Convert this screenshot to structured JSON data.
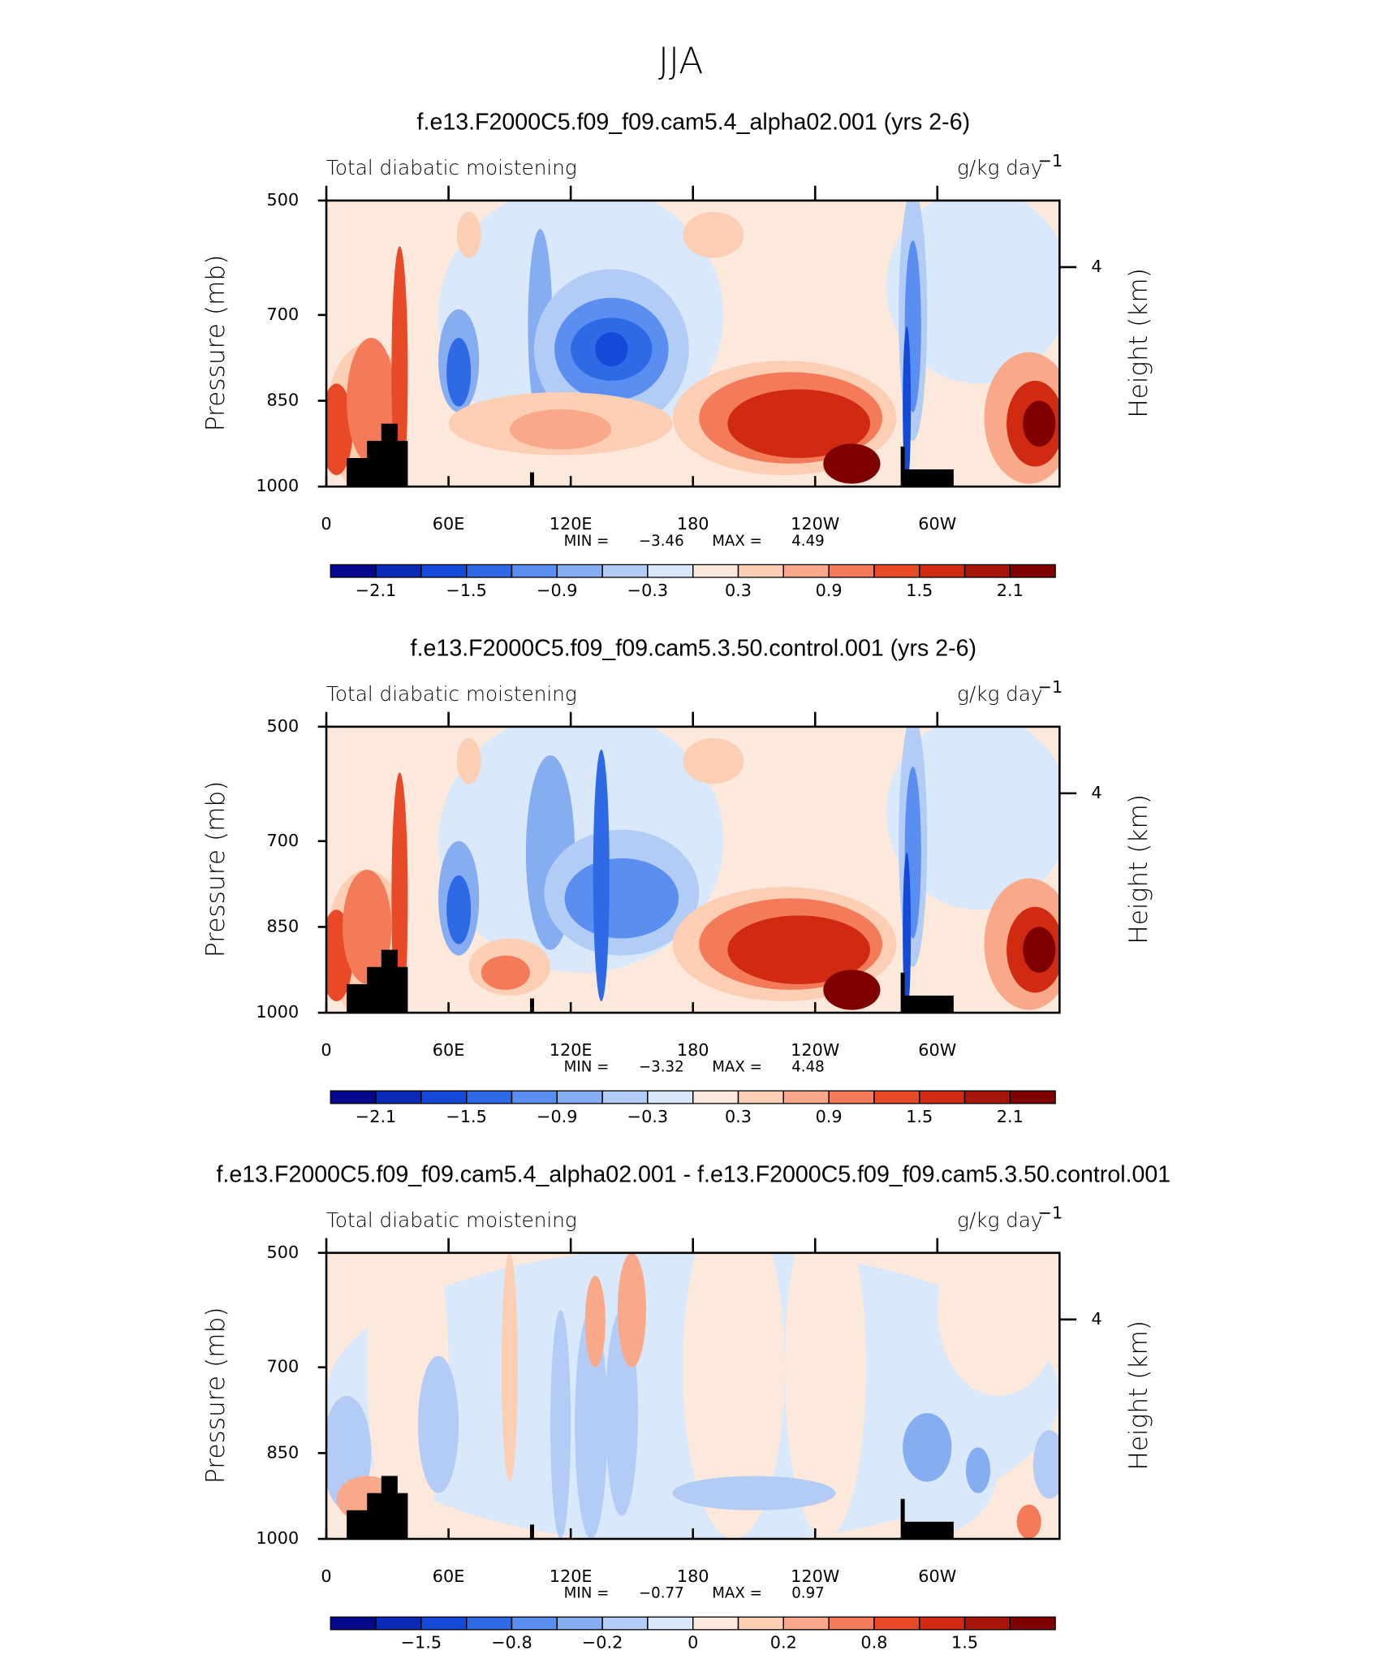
{
  "title": "JJA",
  "chart_data": [
    {
      "type": "contour",
      "title": "f.e13.F2000C5.f09_f09.cam5.4_alpha02.001 (yrs 2-6)",
      "left_label": "Total diabatic moistening",
      "units": "g/kg day",
      "units_exponent": "−1",
      "ylabel": "Pressure (mb)",
      "y2label": "Height (km)",
      "ylim": [
        500,
        1000
      ],
      "yticks": [
        500,
        700,
        850,
        1000
      ],
      "y2ticks": [
        4
      ],
      "xlim": [
        0,
        360
      ],
      "xticks": [
        0,
        {
          "value": 60,
          "label": "60E"
        },
        {
          "value": 120,
          "label": "120E"
        },
        {
          "value": 180,
          "label": "180"
        },
        {
          "value": 240,
          "label": "120W"
        },
        {
          "value": 300,
          "label": "60W"
        }
      ],
      "min_label": "MIN =",
      "min": "−3.46",
      "max_label": "MAX =",
      "max": "4.49",
      "colorbar": {
        "levels": [
          -2.1,
          -1.8,
          -1.5,
          -1.2,
          -0.9,
          -0.6,
          -0.3,
          0,
          0.3,
          0.6,
          0.9,
          1.2,
          1.5,
          1.8,
          2.1
        ],
        "colors": [
          "#050a8c",
          "#0a2bb5",
          "#1549d8",
          "#2e6ae6",
          "#5a8ef0",
          "#86acf2",
          "#b3ccf6",
          "#d9e8fb",
          "#fde9dc",
          "#fccfb5",
          "#f9a98a",
          "#f37b5a",
          "#e84a28",
          "#d02a10",
          "#a8150a",
          "#7e0000"
        ],
        "ticks": [
          {
            "value": -2.1,
            "label": "−2.1"
          },
          {
            "value": -1.5,
            "label": "−1.5"
          },
          {
            "value": -0.9,
            "label": "−0.9"
          },
          {
            "value": -0.3,
            "label": "−0.3"
          },
          0.3,
          0.9,
          1.5,
          2.1
        ]
      }
    },
    {
      "type": "contour",
      "title": "f.e13.F2000C5.f09_f09.cam5.3.50.control.001 (yrs 2-6)",
      "left_label": "Total diabatic moistening",
      "units": "g/kg day",
      "units_exponent": "−1",
      "ylabel": "Pressure (mb)",
      "y2label": "Height (km)",
      "ylim": [
        500,
        1000
      ],
      "yticks": [
        500,
        700,
        850,
        1000
      ],
      "y2ticks": [
        4
      ],
      "xlim": [
        0,
        360
      ],
      "xticks": [
        0,
        {
          "value": 60,
          "label": "60E"
        },
        {
          "value": 120,
          "label": "120E"
        },
        {
          "value": 180,
          "label": "180"
        },
        {
          "value": 240,
          "label": "120W"
        },
        {
          "value": 300,
          "label": "60W"
        }
      ],
      "min_label": "MIN =",
      "min": "−3.32",
      "max_label": "MAX =",
      "max": "4.48",
      "colorbar": {
        "levels": [
          -2.1,
          -1.8,
          -1.5,
          -1.2,
          -0.9,
          -0.6,
          -0.3,
          0,
          0.3,
          0.6,
          0.9,
          1.2,
          1.5,
          1.8,
          2.1
        ],
        "colors": [
          "#050a8c",
          "#0a2bb5",
          "#1549d8",
          "#2e6ae6",
          "#5a8ef0",
          "#86acf2",
          "#b3ccf6",
          "#d9e8fb",
          "#fde9dc",
          "#fccfb5",
          "#f9a98a",
          "#f37b5a",
          "#e84a28",
          "#d02a10",
          "#a8150a",
          "#7e0000"
        ],
        "ticks": [
          {
            "value": -2.1,
            "label": "−2.1"
          },
          {
            "value": -1.5,
            "label": "−1.5"
          },
          {
            "value": -0.9,
            "label": "−0.9"
          },
          {
            "value": -0.3,
            "label": "−0.3"
          },
          0.3,
          0.9,
          1.5,
          2.1
        ]
      }
    },
    {
      "type": "contour",
      "title": "f.e13.F2000C5.f09_f09.cam5.4_alpha02.001 - f.e13.F2000C5.f09_f09.cam5.3.50.control.001",
      "left_label": "Total diabatic moistening",
      "units": "g/kg day",
      "units_exponent": "−1",
      "ylabel": "Pressure (mb)",
      "y2label": "Height (km)",
      "ylim": [
        500,
        1000
      ],
      "yticks": [
        500,
        700,
        850,
        1000
      ],
      "y2ticks": [
        4
      ],
      "xlim": [
        0,
        360
      ],
      "xticks": [
        0,
        {
          "value": 60,
          "label": "60E"
        },
        {
          "value": 120,
          "label": "120E"
        },
        {
          "value": 180,
          "label": "180"
        },
        {
          "value": 240,
          "label": "120W"
        },
        {
          "value": 300,
          "label": "60W"
        }
      ],
      "min_label": "MIN =",
      "min": "−0.77",
      "max_label": "MAX =",
      "max": "0.97",
      "colorbar": {
        "levels": [
          -1.8,
          -1.5,
          -1.2,
          -0.8,
          -0.5,
          -0.2,
          -0.1,
          0,
          0.1,
          0.2,
          0.5,
          0.8,
          1.2,
          1.5,
          1.8
        ],
        "colors": [
          "#050a8c",
          "#0a2bb5",
          "#1549d8",
          "#2e6ae6",
          "#5a8ef0",
          "#86acf2",
          "#b3ccf6",
          "#d9e8fb",
          "#fde9dc",
          "#fccfb5",
          "#f9a98a",
          "#f37b5a",
          "#e84a28",
          "#d02a10",
          "#a8150a",
          "#7e0000"
        ],
        "ticks": [
          {
            "value": -1.5,
            "label": "−1.5"
          },
          {
            "value": -0.8,
            "label": "−0.8"
          },
          {
            "value": -0.2,
            "label": "−0.2"
          },
          0,
          0.2,
          0.8,
          1.5
        ]
      }
    }
  ]
}
